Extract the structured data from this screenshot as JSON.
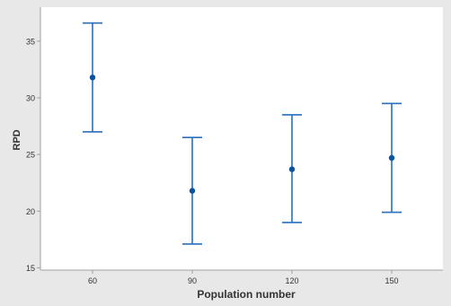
{
  "chart_data": {
    "type": "interval",
    "title": "",
    "xlabel": "Population number",
    "ylabel": "RPD",
    "categories": [
      "60",
      "90",
      "120",
      "150"
    ],
    "series": [
      {
        "mean": [
          31.8,
          21.8,
          23.7,
          24.7
        ],
        "lower": [
          27.0,
          17.1,
          19.0,
          19.9
        ],
        "upper": [
          36.6,
          26.5,
          28.5,
          29.5
        ]
      }
    ],
    "ylim": [
      14.8,
      38.0
    ],
    "yticks": [
      15,
      20,
      25,
      30,
      35
    ],
    "grid": false,
    "legend": "none",
    "colors": {
      "marker": "#0b52a0",
      "interval": "#2a6fba",
      "plot_background": "#ffffff",
      "figure_background": "#e8e8e8",
      "axis": "#a0a0a0",
      "text": "#333333"
    }
  }
}
